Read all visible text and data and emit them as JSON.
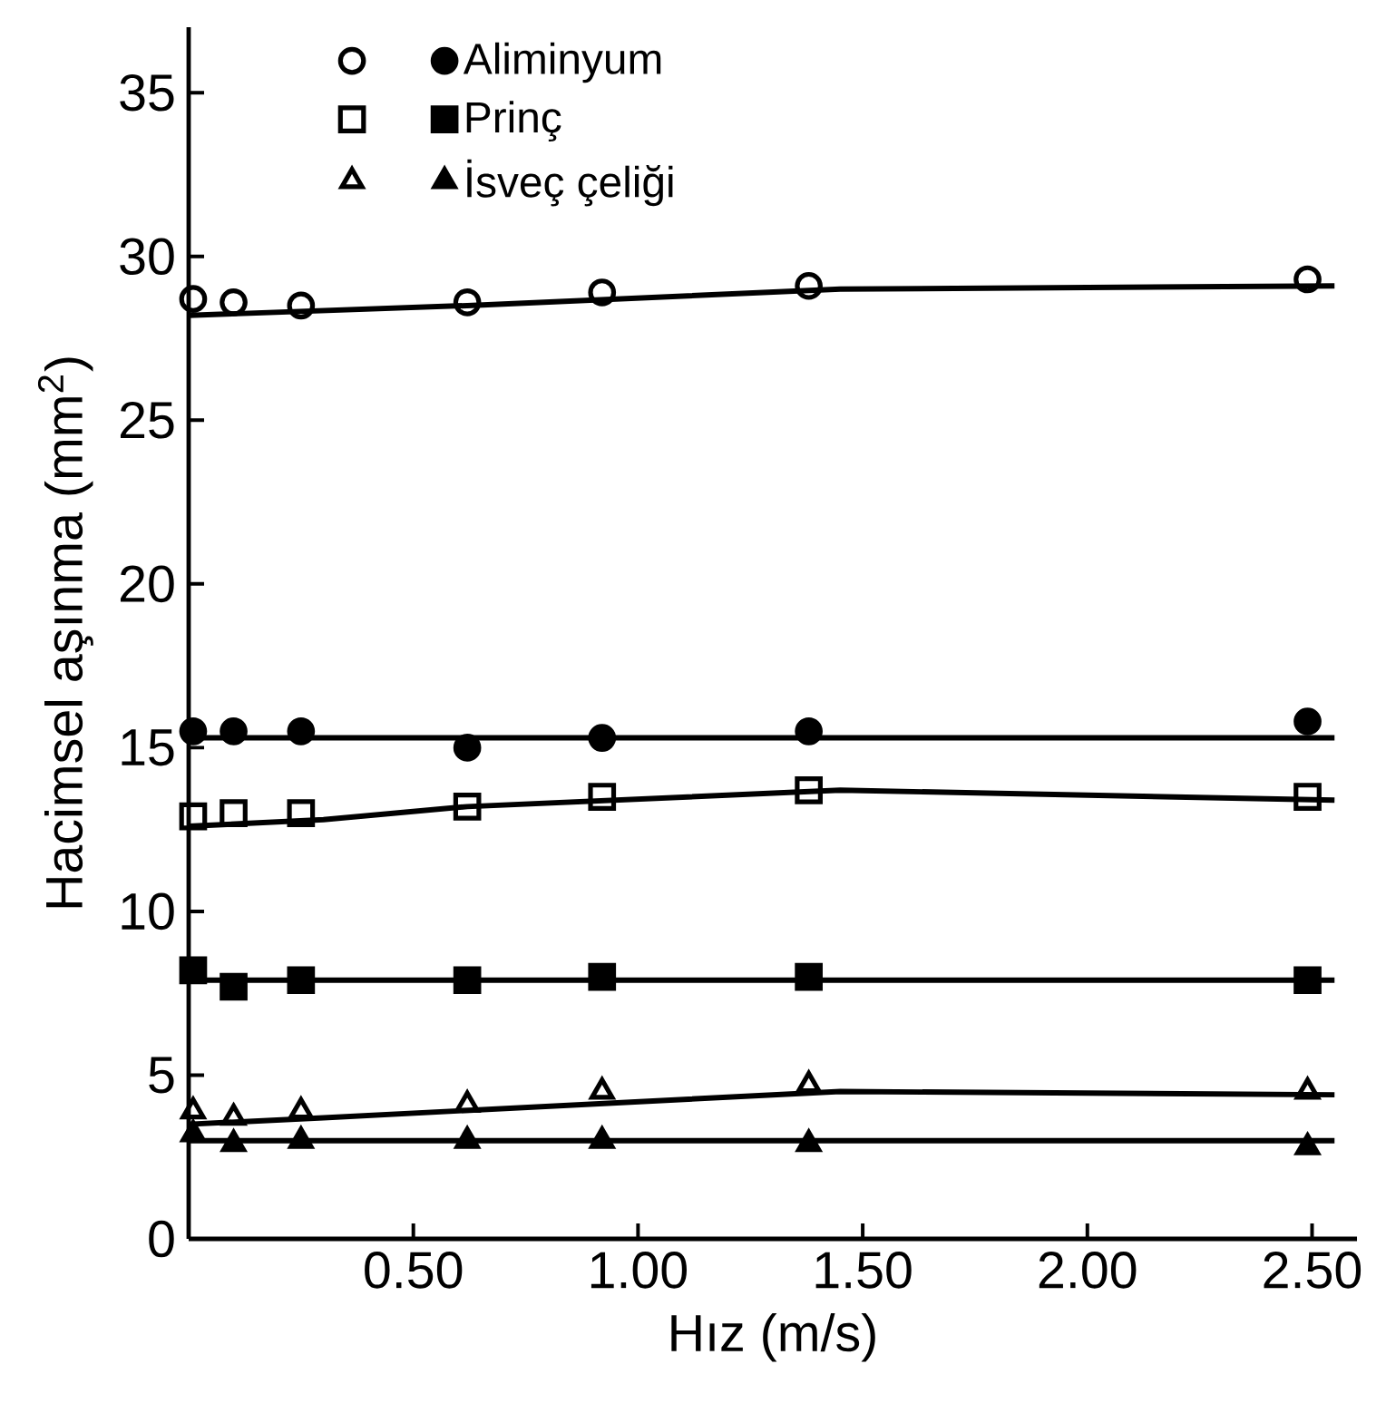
{
  "chart_data": {
    "type": "scatter",
    "xlabel": "Hız (m/s)",
    "ylabel": "Hacimsel aşınma (mm$^{2}$)",
    "xlim": [
      0,
      2.6
    ],
    "ylim": [
      0,
      37
    ],
    "xticks": [
      {
        "value": 0.5,
        "label": "0.50"
      },
      {
        "value": 1.0,
        "label": "1.00"
      },
      {
        "value": 1.5,
        "label": "1.50"
      },
      {
        "value": 2.0,
        "label": "2.00"
      },
      {
        "value": 2.5,
        "label": "2.50"
      }
    ],
    "yticks": [
      0,
      5,
      10,
      15,
      20,
      25,
      30,
      35
    ],
    "grid": false,
    "legend": "top left",
    "series": [
      {
        "color": "#000000",
        "marker": "circle",
        "x": [
          0.01,
          0.1,
          0.25,
          0.62,
          0.92,
          1.38,
          2.49
        ],
        "values": [
          28.7,
          28.6,
          28.5,
          28.6,
          28.9,
          29.1,
          29.3
        ]
      },
      {
        "name": "Aliminyum",
        "color": "#000000",
        "marker": "circle",
        "x": [
          0.01,
          0.1,
          0.25,
          0.62,
          0.92,
          1.38,
          2.49
        ],
        "values": [
          15.5,
          15.5,
          15.5,
          15.0,
          15.3,
          15.5,
          15.8
        ]
      },
      {
        "color": "#000000",
        "marker": "square",
        "x": [
          0.01,
          0.1,
          0.25,
          0.62,
          0.92,
          1.38,
          2.49
        ],
        "values": [
          12.9,
          13.0,
          13.0,
          13.2,
          13.5,
          13.7,
          13.5
        ]
      },
      {
        "name": "Prinç",
        "color": "#000000",
        "marker": "square",
        "x": [
          0.01,
          0.1,
          0.25,
          0.62,
          0.92,
          1.38,
          2.49
        ],
        "values": [
          8.2,
          7.7,
          7.9,
          7.9,
          8.0,
          8.0,
          7.9
        ]
      },
      {
        "color": "#000000",
        "marker": "triangle",
        "x": [
          0.01,
          0.1,
          0.25,
          0.62,
          0.92,
          1.38,
          2.49
        ],
        "values": [
          3.9,
          3.7,
          3.9,
          4.1,
          4.5,
          4.7,
          4.5
        ]
      },
      {
        "name": "İsveç çeliği",
        "color": "#000000",
        "marker": "triangle",
        "x": [
          0.01,
          0.1,
          0.25,
          0.62,
          0.92,
          1.38,
          2.49
        ],
        "values": [
          3.2,
          2.9,
          3.0,
          3.0,
          3.0,
          2.9,
          2.8
        ]
      },
      {
        "type": "line",
        "color": "#000000",
        "marker": "none",
        "x": [
          0,
          0.62,
          1.45,
          2.55
        ],
        "values": [
          28.2,
          28.5,
          29.0,
          29.1
        ]
      },
      {
        "type": "line",
        "color": "#000000",
        "marker": "none",
        "x": [
          0,
          2.55
        ],
        "values": [
          15.3,
          15.3
        ]
      },
      {
        "type": "line",
        "color": "#000000",
        "marker": "none",
        "x": [
          0,
          0.3,
          0.62,
          1.45,
          2.55
        ],
        "values": [
          12.6,
          12.8,
          13.2,
          13.7,
          13.4
        ]
      },
      {
        "type": "line",
        "color": "#000000",
        "marker": "none",
        "x": [
          0,
          2.55
        ],
        "values": [
          7.9,
          7.9
        ]
      },
      {
        "type": "line",
        "color": "#000000",
        "marker": "none",
        "x": [
          0,
          0.3,
          1.45,
          2.55
        ],
        "values": [
          3.5,
          3.7,
          4.5,
          4.4
        ]
      },
      {
        "type": "line",
        "color": "#000000",
        "marker": "none",
        "x": [
          0,
          2.55
        ],
        "values": [
          3.0,
          3.0
        ]
      }
    ]
  }
}
